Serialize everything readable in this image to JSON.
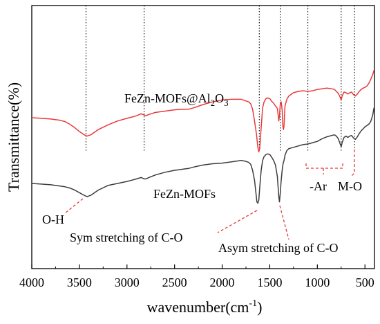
{
  "chart_data": {
    "type": "line",
    "title": "",
    "xlabel": {
      "base": "wavenumber(cm",
      "sup": "-1",
      "tail": ")"
    },
    "ylabel": "Transmittance(%)",
    "xlim": [
      4000,
      400
    ],
    "x_reversed": true,
    "y_ticks_shown": false,
    "xticks": [
      "4000",
      "3500",
      "3000",
      "2500",
      "2000",
      "1500",
      "1000",
      "500"
    ],
    "series": [
      {
        "name": "FeZn-MOFs@Al2O3",
        "color": "#e8393a",
        "points": [
          [
            4000,
            100
          ],
          [
            3900,
            99
          ],
          [
            3800,
            98
          ],
          [
            3700,
            96
          ],
          [
            3650,
            94
          ],
          [
            3600,
            90
          ],
          [
            3550,
            85
          ],
          [
            3500,
            79
          ],
          [
            3450,
            74
          ],
          [
            3420,
            72
          ],
          [
            3380,
            74
          ],
          [
            3300,
            82
          ],
          [
            3200,
            89
          ],
          [
            3100,
            95
          ],
          [
            3000,
            99
          ],
          [
            2950,
            101
          ],
          [
            2900,
            103
          ],
          [
            2850,
            106
          ],
          [
            2820,
            104
          ],
          [
            2800,
            103
          ],
          [
            2770,
            105
          ],
          [
            2700,
            108
          ],
          [
            2600,
            110
          ],
          [
            2500,
            112
          ],
          [
            2400,
            113
          ],
          [
            2350,
            113
          ],
          [
            2300,
            115
          ],
          [
            2200,
            120
          ],
          [
            2100,
            124
          ],
          [
            2000,
            127
          ],
          [
            1900,
            128
          ],
          [
            1800,
            128
          ],
          [
            1760,
            126
          ],
          [
            1720,
            124
          ],
          [
            1700,
            121
          ],
          [
            1680,
            113
          ],
          [
            1660,
            95
          ],
          [
            1640,
            75
          ],
          [
            1625,
            55
          ],
          [
            1615,
            48
          ],
          [
            1605,
            54
          ],
          [
            1590,
            85
          ],
          [
            1575,
            115
          ],
          [
            1560,
            124
          ],
          [
            1540,
            129
          ],
          [
            1520,
            130
          ],
          [
            1500,
            129
          ],
          [
            1480,
            125
          ],
          [
            1460,
            122
          ],
          [
            1440,
            118
          ],
          [
            1420,
            114
          ],
          [
            1405,
            95
          ],
          [
            1398,
            103
          ],
          [
            1390,
            120
          ],
          [
            1380,
            124
          ],
          [
            1370,
            112
          ],
          [
            1362,
            86
          ],
          [
            1356,
            82
          ],
          [
            1350,
            88
          ],
          [
            1340,
            118
          ],
          [
            1320,
            128
          ],
          [
            1300,
            133
          ],
          [
            1250,
            138
          ],
          [
            1200,
            140
          ],
          [
            1150,
            141
          ],
          [
            1100,
            140
          ],
          [
            1050,
            141
          ],
          [
            1000,
            143
          ],
          [
            950,
            144
          ],
          [
            900,
            145
          ],
          [
            850,
            144
          ],
          [
            820,
            143
          ],
          [
            800,
            140
          ],
          [
            780,
            137
          ],
          [
            760,
            131
          ],
          [
            750,
            127
          ],
          [
            740,
            133
          ],
          [
            720,
            139
          ],
          [
            700,
            138
          ],
          [
            680,
            136
          ],
          [
            660,
            138
          ],
          [
            640,
            139
          ],
          [
            620,
            135
          ],
          [
            600,
            133
          ],
          [
            580,
            136
          ],
          [
            560,
            140
          ],
          [
            540,
            143
          ],
          [
            520,
            145
          ],
          [
            500,
            146
          ],
          [
            480,
            148
          ],
          [
            460,
            152
          ],
          [
            440,
            158
          ],
          [
            420,
            165
          ],
          [
            405,
            172
          ]
        ]
      },
      {
        "name": "FeZn-MOFs",
        "color": "#3c3c3c",
        "points": [
          [
            4000,
            0
          ],
          [
            3900,
            -1
          ],
          [
            3800,
            -2
          ],
          [
            3700,
            -4
          ],
          [
            3650,
            -5
          ],
          [
            3600,
            -7
          ],
          [
            3550,
            -10
          ],
          [
            3500,
            -14
          ],
          [
            3450,
            -18
          ],
          [
            3420,
            -20
          ],
          [
            3380,
            -18
          ],
          [
            3300,
            -10
          ],
          [
            3200,
            -3
          ],
          [
            3100,
            0
          ],
          [
            3000,
            3
          ],
          [
            2950,
            5
          ],
          [
            2900,
            7
          ],
          [
            2850,
            9
          ],
          [
            2820,
            7
          ],
          [
            2800,
            7
          ],
          [
            2770,
            9
          ],
          [
            2700,
            13
          ],
          [
            2600,
            17
          ],
          [
            2500,
            20
          ],
          [
            2400,
            22
          ],
          [
            2350,
            23
          ],
          [
            2300,
            25
          ],
          [
            2200,
            28
          ],
          [
            2100,
            30
          ],
          [
            2000,
            31
          ],
          [
            1900,
            33
          ],
          [
            1800,
            35
          ],
          [
            1760,
            34
          ],
          [
            1720,
            32
          ],
          [
            1700,
            29
          ],
          [
            1680,
            20
          ],
          [
            1660,
            5
          ],
          [
            1645,
            -15
          ],
          [
            1635,
            -28
          ],
          [
            1625,
            -30
          ],
          [
            1615,
            -25
          ],
          [
            1605,
            -5
          ],
          [
            1590,
            20
          ],
          [
            1575,
            35
          ],
          [
            1560,
            41
          ],
          [
            1540,
            44
          ],
          [
            1520,
            45
          ],
          [
            1500,
            44
          ],
          [
            1480,
            40
          ],
          [
            1460,
            35
          ],
          [
            1440,
            28
          ],
          [
            1420,
            10
          ],
          [
            1405,
            -20
          ],
          [
            1398,
            -28
          ],
          [
            1390,
            -15
          ],
          [
            1380,
            5
          ],
          [
            1370,
            20
          ],
          [
            1360,
            30
          ],
          [
            1350,
            35
          ],
          [
            1340,
            43
          ],
          [
            1320,
            50
          ],
          [
            1300,
            53
          ],
          [
            1250,
            55
          ],
          [
            1200,
            57
          ],
          [
            1150,
            59
          ],
          [
            1100,
            60
          ],
          [
            1050,
            62
          ],
          [
            1000,
            64
          ],
          [
            950,
            68
          ],
          [
            900,
            71
          ],
          [
            850,
            73
          ],
          [
            820,
            74
          ],
          [
            800,
            72
          ],
          [
            780,
            68
          ],
          [
            760,
            60
          ],
          [
            750,
            56
          ],
          [
            740,
            62
          ],
          [
            720,
            70
          ],
          [
            700,
            72
          ],
          [
            680,
            70
          ],
          [
            660,
            72
          ],
          [
            640,
            73
          ],
          [
            620,
            69
          ],
          [
            600,
            67
          ],
          [
            580,
            71
          ],
          [
            560,
            76
          ],
          [
            540,
            80
          ],
          [
            520,
            83
          ],
          [
            500,
            86
          ],
          [
            480,
            88
          ],
          [
            460,
            90
          ],
          [
            440,
            94
          ],
          [
            420,
            103
          ],
          [
            405,
            115
          ]
        ]
      }
    ],
    "reference_lines_x": [
      3430,
      2820,
      1610,
      1390,
      1100,
      750,
      610
    ],
    "series_labels": [
      {
        "series": "FeZn-MOFs@Al2O3",
        "parts": [
          {
            "t": "FeZn-MOFs@Al"
          },
          {
            "t": "2",
            "sub": true
          },
          {
            "t": "O"
          },
          {
            "t": "3",
            "sub": true
          }
        ]
      },
      {
        "series": "FeZn-MOFs",
        "parts": [
          {
            "t": "FeZn-MOFs"
          }
        ]
      }
    ],
    "annotations": [
      {
        "text": "O-H",
        "x": 3420
      },
      {
        "text": "Sym stretching of C-O",
        "x": 1615
      },
      {
        "text": "Asym stretching of C-O",
        "x": 1390
      },
      {
        "text": "-Ar",
        "x_range": [
          1100,
          700
        ]
      },
      {
        "text": "M-O",
        "x": 610
      }
    ]
  }
}
